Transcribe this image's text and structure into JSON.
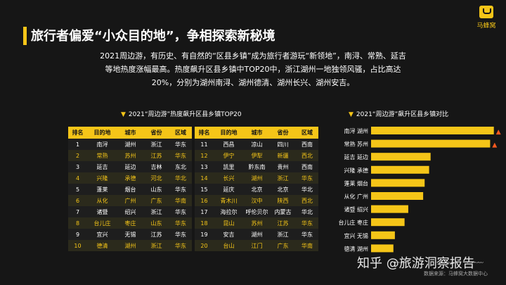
{
  "title": "旅行者偏爱“小众目的地”，争相探索新秘境",
  "logo": {
    "text": "马蜂窝",
    "icon": "mafengwo-logo-icon"
  },
  "paragraph": [
    "2021周边游，有历史、有自然的“区县乡镇”成为旅行者游玩“新领地”，南浔、常熟、延吉",
    "等地热度涨幅最高。热度飙升区县乡镇中TOP20中，浙江湖州一地独领风骚，占比高达",
    "20%，分别为湖州南浔、湖州德清、湖州长兴、湖州安吉。"
  ],
  "table_title": "2021“周边游”热度飙升区县乡镇TOP20",
  "table": {
    "headers": [
      "排名",
      "目的地",
      "城市",
      "省份",
      "区域"
    ],
    "left": [
      [
        "1",
        "南浔",
        "湖州",
        "浙江",
        "华东"
      ],
      [
        "2",
        "常熟",
        "苏州",
        "江苏",
        "华东"
      ],
      [
        "3",
        "延吉",
        "延边",
        "吉林",
        "东北"
      ],
      [
        "4",
        "兴隆",
        "承德",
        "河北",
        "华北"
      ],
      [
        "5",
        "蓬莱",
        "烟台",
        "山东",
        "华东"
      ],
      [
        "6",
        "从化",
        "广州",
        "广东",
        "华南"
      ],
      [
        "7",
        "诸暨",
        "绍兴",
        "浙江",
        "华东"
      ],
      [
        "8",
        "台儿庄",
        "枣庄",
        "山东",
        "华东"
      ],
      [
        "9",
        "宜兴",
        "无锡",
        "江苏",
        "华东"
      ],
      [
        "10",
        "德清",
        "湖州",
        "浙江",
        "华东"
      ]
    ],
    "right": [
      [
        "11",
        "西昌",
        "凉山",
        "四川",
        "西南"
      ],
      [
        "12",
        "伊宁",
        "伊犁",
        "新疆",
        "西北"
      ],
      [
        "13",
        "凯里",
        "黔东南",
        "贵州",
        "西南"
      ],
      [
        "14",
        "长兴",
        "湖州",
        "浙江",
        "华东"
      ],
      [
        "15",
        "延庆",
        "北京",
        "北京",
        "华北"
      ],
      [
        "16",
        "青木川",
        "汉中",
        "陕西",
        "西北"
      ],
      [
        "17",
        "海拉尔",
        "呼伦贝尔",
        "内蒙古",
        "华北"
      ],
      [
        "18",
        "昆山",
        "苏州",
        "江苏",
        "华东"
      ],
      [
        "19",
        "安吉",
        "湖州",
        "浙江",
        "华东"
      ],
      [
        "20",
        "台山",
        "江门",
        "广东",
        "华南"
      ]
    ]
  },
  "chart_data": {
    "type": "bar",
    "orientation": "horizontal",
    "title": "2021“周边游”飙升区县乡镇对比",
    "categories": [
      "南浔 湖州",
      "常熟 苏州",
      "延吉 延边",
      "兴隆 承德",
      "蓬莱 烟台",
      "从化 广州",
      "诸暨 绍兴",
      "台儿庄 枣庄",
      "宜兴 无锡",
      "德清 湖州"
    ],
    "values": [
      1650,
      1600,
      800,
      780,
      720,
      700,
      500,
      450,
      320,
      300
    ],
    "hot_flags": [
      true,
      true,
      false,
      false,
      false,
      false,
      false,
      false,
      false,
      false
    ],
    "xticks": [
      "400%",
      "1,000%",
      "1,400%"
    ],
    "xtick_values": [
      400,
      1000,
      1400
    ],
    "xlim": [
      0,
      1700
    ],
    "bar_color": "#f5c518",
    "hot_icon": "fire-icon"
  },
  "watermark": "知乎 @旅游洞察报告",
  "source": "数据来源：马蜂窝大数据中心"
}
